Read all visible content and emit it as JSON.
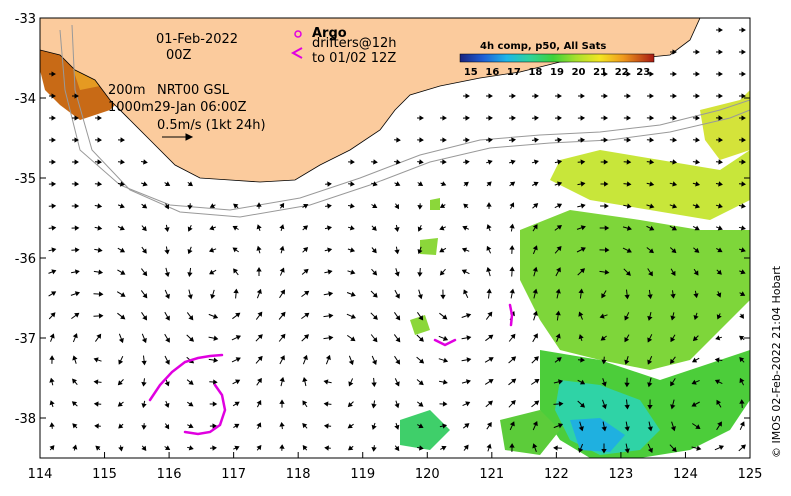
{
  "map": {
    "date_line": "01-Feb-2022",
    "time_line": "00Z",
    "depth_200": "200m",
    "depth_1000": "1000m",
    "product": "NRT00 GSL",
    "product_time": "29-Jan 06:00Z",
    "scale_label": "0.5m/s (1kt 24h)",
    "argo_title": "Argo",
    "argo_line1": "drifters@12h",
    "argo_line2": "to 01/02 12Z",
    "colorbar_title": "4h comp, p50, All Sats",
    "credit": "© IMOS 02-Feb-2022 21:04 Hobart",
    "colors": {
      "land": "#fbcb9d",
      "argo": "#e000e0",
      "bathy": "#999999"
    }
  },
  "chart_data": {
    "type": "map",
    "x_axis": {
      "range": [
        114,
        125
      ],
      "ticks": [
        "114",
        "115",
        "116",
        "117",
        "118",
        "119",
        "120",
        "121",
        "122",
        "123",
        "124",
        "125"
      ]
    },
    "y_axis": {
      "range": [
        -38.5,
        -33
      ],
      "ticks": [
        "-33",
        "-34",
        "-35",
        "-36",
        "-37",
        "-38"
      ]
    },
    "colorbar": {
      "ticks": [
        "15",
        "16",
        "17",
        "18",
        "19",
        "20",
        "21",
        "22",
        "23"
      ],
      "range": [
        14.5,
        23.5
      ]
    }
  }
}
